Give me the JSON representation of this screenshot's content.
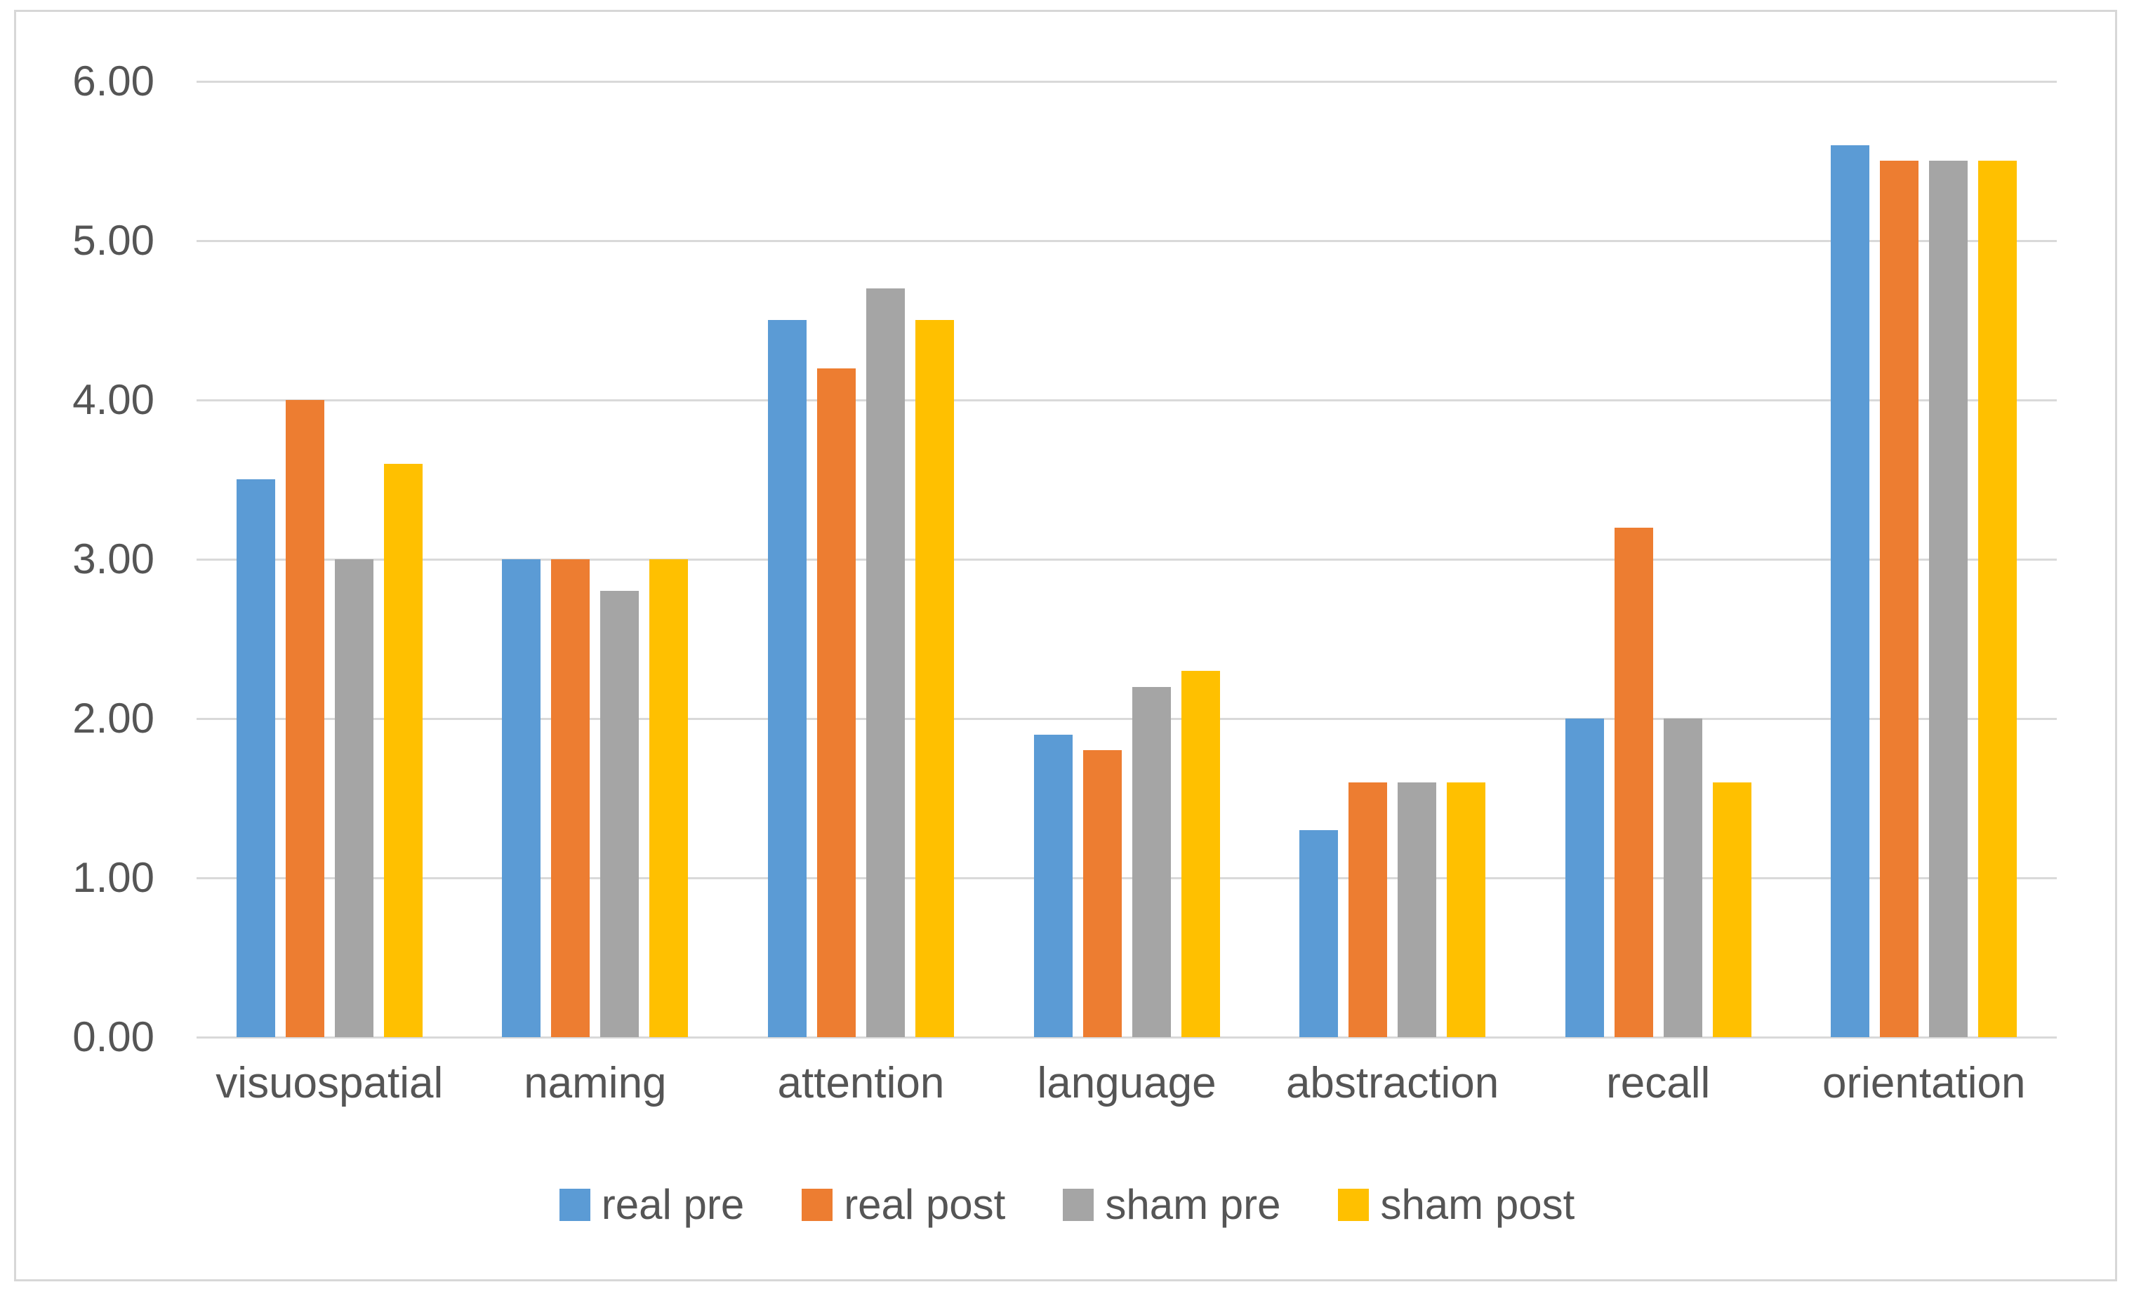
{
  "chart_data": {
    "type": "bar",
    "title": "",
    "xlabel": "",
    "ylabel": "",
    "categories": [
      "visuospatial",
      "naming",
      "attention",
      "language",
      "abstraction",
      "recall",
      "orientation"
    ],
    "series": [
      {
        "name": "real pre",
        "color": "#5B9BD5",
        "values": [
          3.5,
          3.0,
          4.5,
          1.9,
          1.3,
          2.0,
          5.6
        ]
      },
      {
        "name": "real post",
        "color": "#ED7D31",
        "values": [
          4.0,
          3.0,
          4.2,
          1.8,
          1.6,
          3.2,
          5.5
        ]
      },
      {
        "name": "sham pre",
        "color": "#A5A5A5",
        "values": [
          3.0,
          2.8,
          4.7,
          2.2,
          1.6,
          2.0,
          5.5
        ]
      },
      {
        "name": "sham post",
        "color": "#FFC000",
        "values": [
          3.6,
          3.0,
          4.5,
          2.3,
          1.6,
          1.6,
          5.5
        ]
      }
    ],
    "ylim": [
      0,
      6
    ],
    "yticks": [
      "0.00",
      "1.00",
      "2.00",
      "3.00",
      "4.00",
      "5.00",
      "6.00"
    ],
    "grid": true,
    "legend_position": "bottom"
  },
  "style_colors": {
    "gridline": "#D9D9D9",
    "frame_border": "#D7D7D7",
    "axis_text": "#555555",
    "background": "#FFFFFF"
  }
}
